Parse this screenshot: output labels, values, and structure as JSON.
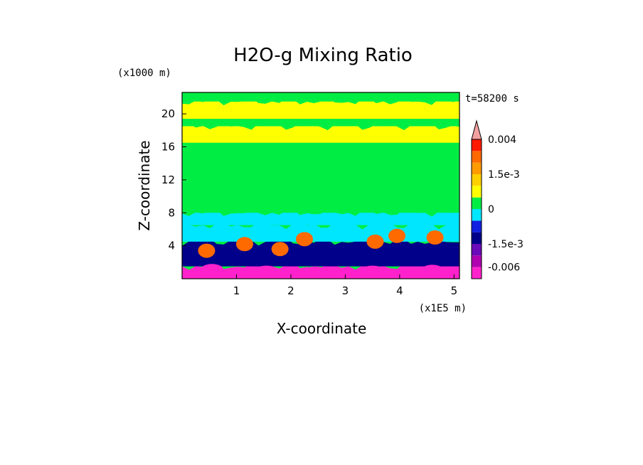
{
  "chart_data": {
    "type": "heatmap",
    "title": "H2O-g Mixing Ratio",
    "xlabel": "X-coordinate",
    "ylabel": "Z-coordinate",
    "x_unit": "(x1E5 m)",
    "y_unit": "(x1000 m)",
    "time_label": "t=58200 s",
    "xlim": [
      0,
      5.1
    ],
    "ylim": [
      0,
      22.6
    ],
    "x_ticks": [
      1,
      2,
      3,
      4,
      5
    ],
    "y_ticks": [
      4,
      8,
      12,
      16,
      20
    ],
    "colorbar": {
      "extend": "max",
      "levels": [
        -0.009,
        -0.006,
        -0.003,
        -0.0015,
        -0.001,
        -0.0005,
        0,
        0.0005,
        0.001,
        0.0015,
        0.002,
        0.003,
        0.004,
        0.005
      ],
      "colors": [
        "#ff22cc",
        "#b000b0",
        "#6a0ab8",
        "#00008a",
        "#1020e0",
        "#00e6ff",
        "#00ee44",
        "#ffff00",
        "#ffd000",
        "#ff9a00",
        "#ff6a00",
        "#ff1a00",
        "#f2a0a0"
      ],
      "tick_values": [
        0.004,
        0.0015,
        0,
        -0.0015,
        -0.006
      ],
      "tick_labels": [
        "0.004",
        "1.5e-3",
        "0",
        "-1.5e-3",
        "-0.006"
      ]
    },
    "bands": [
      {
        "z": [
          0,
          1.5
        ],
        "value": -0.007
      },
      {
        "z": [
          1.5,
          4.5
        ],
        "value": -0.0015
      },
      {
        "z": [
          4.5,
          6.5
        ],
        "value": -0.0003
      },
      {
        "z": [
          6.5,
          8
        ],
        "value": -0.0002
      },
      {
        "z": [
          8,
          16.5
        ],
        "value": 0.0002
      },
      {
        "z": [
          16.5,
          18.5
        ],
        "value": 0.0007
      },
      {
        "z": [
          18.5,
          19.4
        ],
        "value": 0.0002
      },
      {
        "z": [
          19.4,
          21.5
        ],
        "value": 0.0007
      },
      {
        "z": [
          21.5,
          22.6
        ],
        "value": 0.0002
      }
    ],
    "features": [
      {
        "x": 0.45,
        "z": 3.4,
        "value": 0.0025
      },
      {
        "x": 1.15,
        "z": 4.2,
        "value": 0.0025
      },
      {
        "x": 1.8,
        "z": 3.6,
        "value": 0.0025
      },
      {
        "x": 2.25,
        "z": 4.8,
        "value": 0.0025
      },
      {
        "x": 3.55,
        "z": 4.5,
        "value": 0.0025
      },
      {
        "x": 3.95,
        "z": 5.2,
        "value": 0.0025
      },
      {
        "x": 4.65,
        "z": 5.0,
        "value": 0.0025
      },
      {
        "x": 0.55,
        "z": 1.1,
        "value": -0.007
      },
      {
        "x": 1.55,
        "z": 0.9,
        "value": -0.007
      },
      {
        "x": 2.45,
        "z": 0.8,
        "value": -0.007
      },
      {
        "x": 3.5,
        "z": 0.9,
        "value": -0.007
      },
      {
        "x": 4.6,
        "z": 1.0,
        "value": -0.007
      }
    ]
  }
}
